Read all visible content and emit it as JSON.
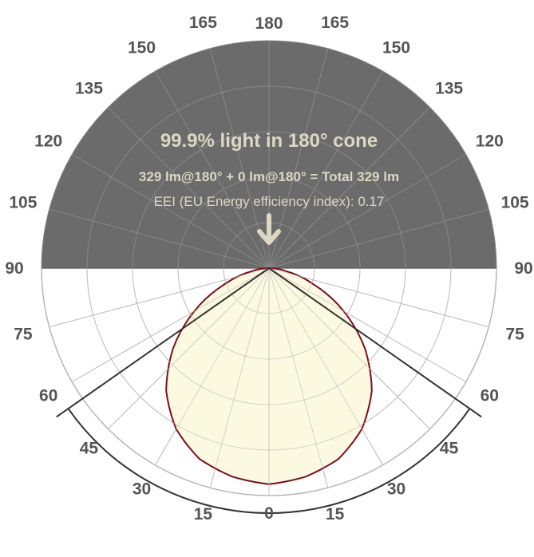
{
  "chart_data": {
    "type": "polar",
    "title": "99.9% light in 180° cone",
    "flux_line": "329 lm@180° + 0 lm@180° = Total 329 lm",
    "eei_line": "EEI (EU Energy efficiency index): 0.17",
    "arrow_icon": "arrow-down-icon",
    "angle_ticks": [
      {
        "angle": 180,
        "side": "left",
        "label": "180"
      },
      {
        "angle": 165,
        "side": "left",
        "label": "165"
      },
      {
        "angle": 150,
        "side": "left",
        "label": "150"
      },
      {
        "angle": 135,
        "side": "left",
        "label": "135"
      },
      {
        "angle": 120,
        "side": "left",
        "label": "120"
      },
      {
        "angle": 105,
        "side": "left",
        "label": "105"
      },
      {
        "angle": 90,
        "side": "left",
        "label": "90"
      },
      {
        "angle": 75,
        "side": "left",
        "label": "75"
      },
      {
        "angle": 60,
        "side": "left",
        "label": "60"
      },
      {
        "angle": 45,
        "side": "left",
        "label": "45"
      },
      {
        "angle": 30,
        "side": "left",
        "label": "30"
      },
      {
        "angle": 15,
        "side": "left",
        "label": "15"
      },
      {
        "angle": 0,
        "side": "left",
        "label": "0"
      },
      {
        "angle": 15,
        "side": "right",
        "label": "15"
      },
      {
        "angle": 30,
        "side": "right",
        "label": "30"
      },
      {
        "angle": 45,
        "side": "right",
        "label": "45"
      },
      {
        "angle": 60,
        "side": "right",
        "label": "60"
      },
      {
        "angle": 75,
        "side": "right",
        "label": "75"
      },
      {
        "angle": 90,
        "side": "right",
        "label": "90"
      },
      {
        "angle": 105,
        "side": "right",
        "label": "105"
      },
      {
        "angle": 120,
        "side": "right",
        "label": "120"
      },
      {
        "angle": 135,
        "side": "right",
        "label": "135"
      },
      {
        "angle": 150,
        "side": "right",
        "label": "150"
      },
      {
        "angle": 165,
        "side": "right",
        "label": "165"
      }
    ],
    "beam_edge_angle": 55,
    "max_angle": 90,
    "distribution": {
      "angles": [
        0,
        10,
        20,
        30,
        40,
        50,
        60,
        70,
        80,
        90
      ],
      "relative_intensity": [
        1.0,
        0.98,
        0.94,
        0.86,
        0.74,
        0.58,
        0.4,
        0.22,
        0.08,
        0.0
      ]
    },
    "colors": {
      "upper_fill": "#6b6b6b",
      "grid_light": "#bdbdbd",
      "grid_dark": "#888888",
      "curve_stroke": "#7a0e1e",
      "curve_fill": "#fbf8dc",
      "beam_line": "#333333",
      "text_light": "#dcd8c4",
      "tick_text": "#555555"
    }
  }
}
